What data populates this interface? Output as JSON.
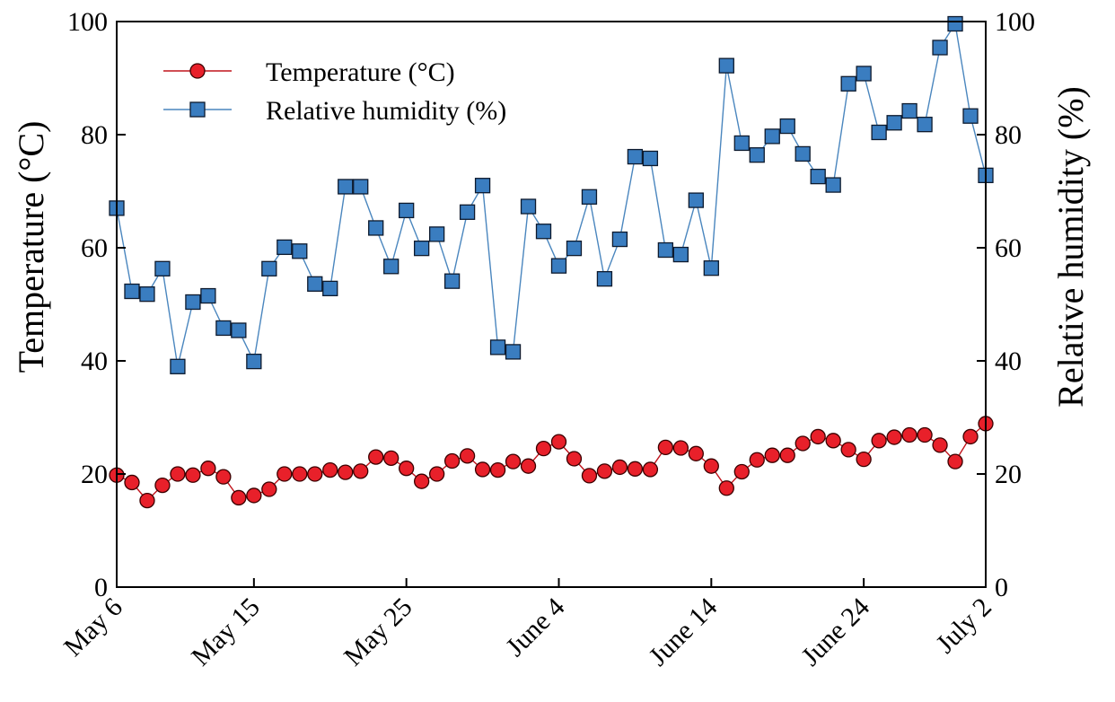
{
  "chart_data": {
    "type": "line",
    "x": [
      "May 6",
      "May 7",
      "May 8",
      "May 9",
      "May 10",
      "May 11",
      "May 12",
      "May 13",
      "May 14",
      "May 15",
      "May 16",
      "May 17",
      "May 18",
      "May 19",
      "May 20",
      "May 21",
      "May 22",
      "May 23",
      "May 24",
      "May 25",
      "May 26",
      "May 27",
      "May 28",
      "May 29",
      "May 30",
      "May 31",
      "June 1",
      "June 2",
      "June 3",
      "June 4",
      "June 5",
      "June 6",
      "June 7",
      "June 8",
      "June 9",
      "June 10",
      "June 11",
      "June 12",
      "June 13",
      "June 14",
      "June 15",
      "June 16",
      "June 17",
      "June 18",
      "June 19",
      "June 20",
      "June 21",
      "June 22",
      "June 23",
      "June 24",
      "June 25",
      "June 26",
      "June 27",
      "June 28",
      "June 29",
      "June 30",
      "July 1",
      "July 2"
    ],
    "x_ticks": [
      "May 6",
      "May 15",
      "May 25",
      "June 4",
      "June 14",
      "June 24",
      "July 2"
    ],
    "ylabel": "Temperature (°C)",
    "y2label": "Relative humidity (%)",
    "ylim": [
      0,
      100
    ],
    "y2lim": [
      0,
      100
    ],
    "y_ticks": [
      "0",
      "20",
      "40",
      "60",
      "80",
      "100"
    ],
    "y2_ticks": [
      "0",
      "20",
      "40",
      "60",
      "80",
      "100"
    ],
    "legend_position": "top-left",
    "grid": false,
    "series": [
      {
        "name": "Temperature (°C)",
        "axis": "left",
        "marker": "circle",
        "color": "#e8202a",
        "line_color": "#c0141c",
        "values": [
          19.8,
          18.5,
          15.3,
          18.0,
          20.0,
          19.8,
          21.0,
          19.5,
          15.8,
          16.2,
          17.3,
          20.0,
          20.0,
          20.0,
          20.7,
          20.3,
          20.5,
          23.0,
          22.8,
          21.0,
          18.7,
          20.0,
          22.3,
          23.2,
          20.8,
          20.7,
          22.2,
          21.4,
          24.5,
          25.7,
          22.7,
          19.7,
          20.5,
          21.2,
          20.9,
          20.8,
          24.7,
          24.6,
          23.6,
          21.4,
          17.5,
          20.4,
          22.5,
          23.3,
          23.3,
          25.4,
          26.6,
          25.9,
          24.3,
          22.6,
          25.9,
          26.5,
          26.9,
          26.9,
          25.1,
          22.2,
          26.6,
          28.9
        ]
      },
      {
        "name": "Relative humidity (%)",
        "axis": "right",
        "marker": "square",
        "color": "#3a7dc0",
        "line_color": "#4a86be",
        "values": [
          67.0,
          52.3,
          51.8,
          56.3,
          39.0,
          50.4,
          51.5,
          45.8,
          45.4,
          39.9,
          56.3,
          60.1,
          59.4,
          53.6,
          52.8,
          70.8,
          70.8,
          63.5,
          56.7,
          66.6,
          59.9,
          62.4,
          54.1,
          66.3,
          71.0,
          42.4,
          41.6,
          67.3,
          62.9,
          56.8,
          59.9,
          69.0,
          54.5,
          61.5,
          76.1,
          75.8,
          59.6,
          58.8,
          68.4,
          56.4,
          92.2,
          78.5,
          76.4,
          79.7,
          81.5,
          76.6,
          72.6,
          71.1,
          89.0,
          90.8,
          80.4,
          82.1,
          84.2,
          81.8,
          95.4,
          99.6,
          83.3,
          72.8
        ]
      }
    ]
  }
}
